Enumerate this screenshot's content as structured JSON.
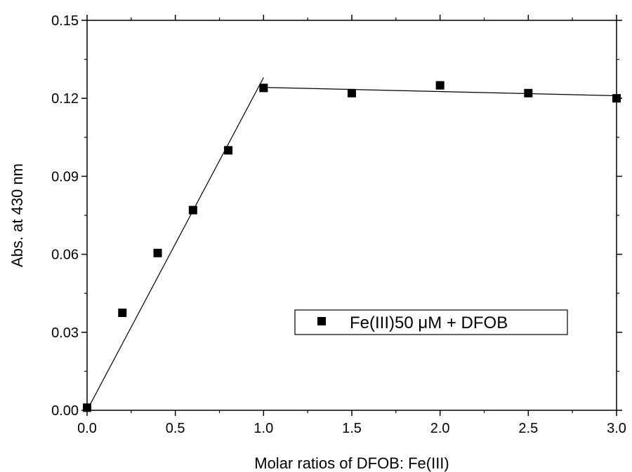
{
  "chart_data": {
    "type": "scatter",
    "title": "",
    "xlabel": "Molar ratios of DFOB: Fe(III)",
    "ylabel": "Abs. at 430 nm",
    "xlim": [
      0.0,
      3.0
    ],
    "ylim": [
      0.0,
      0.15
    ],
    "x_ticks": [
      "0.0",
      "0.5",
      "1.0",
      "1.5",
      "2.0",
      "2.5",
      "3.0"
    ],
    "y_ticks": [
      "0.00",
      "0.03",
      "0.06",
      "0.09",
      "0.12",
      "0.15"
    ],
    "grid": false,
    "legend_position": "center-right",
    "series": [
      {
        "name": "Fe(III)50 μM + DFOB",
        "marker": "square",
        "color": "#000000",
        "x": [
          0.0,
          0.2,
          0.4,
          0.6,
          0.8,
          1.0,
          1.5,
          2.0,
          2.5,
          3.0
        ],
        "y": [
          0.001,
          0.0375,
          0.0605,
          0.077,
          0.1,
          0.124,
          0.122,
          0.125,
          0.122,
          0.12
        ]
      }
    ],
    "fit_lines": [
      {
        "x": [
          0.0,
          1.0
        ],
        "y": [
          0.0,
          0.128
        ]
      },
      {
        "x": [
          1.0,
          3.0
        ],
        "y": [
          0.1242,
          0.121
        ]
      }
    ]
  }
}
